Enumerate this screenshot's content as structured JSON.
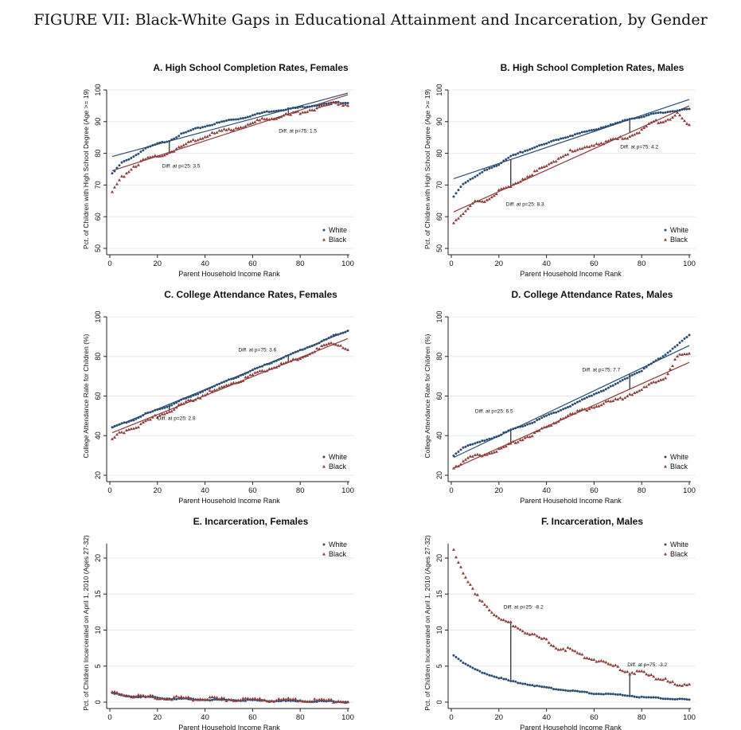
{
  "figure_title": "FIGURE VII: Black-White Gaps in Educational Attainment and Incarceration, by Gender",
  "colors": {
    "white": "#2b4c70",
    "black": "#8e3b3b",
    "grid": "#e4eaee"
  },
  "chart_data": [
    {
      "id": "A",
      "type": "scatter",
      "title": "A. High School Completion Rates, Females",
      "xlabel": "Parent Household Income Rank",
      "ylabel": "Pct. of Children with High School Degree (Age >= 19)",
      "xlim": [
        0,
        100
      ],
      "ylim": [
        50,
        100
      ],
      "xticks": [
        0,
        20,
        40,
        60,
        80,
        100
      ],
      "yticks": [
        50,
        60,
        70,
        80,
        90,
        100
      ],
      "legend": {
        "position": "bottom-right",
        "entries": [
          "White",
          "Black"
        ]
      },
      "x": [
        1,
        5,
        10,
        15,
        20,
        25,
        30,
        35,
        40,
        45,
        50,
        55,
        60,
        65,
        70,
        75,
        80,
        85,
        90,
        95,
        100
      ],
      "series": [
        {
          "name": "White",
          "values": [
            73.5,
            77,
            79,
            81.5,
            83,
            84,
            86,
            87.5,
            88.5,
            89.5,
            90.5,
            91,
            92,
            93,
            93.5,
            94,
            94.5,
            95,
            95.5,
            96,
            96
          ],
          "fit": [
            79,
            99
          ]
        },
        {
          "name": "Black",
          "values": [
            67.5,
            72.5,
            76,
            78,
            79,
            80.5,
            82,
            84,
            85.5,
            86.5,
            87.5,
            88.5,
            89.5,
            91,
            91.5,
            92,
            93,
            94,
            95,
            96,
            95.5
          ],
          "fit": [
            74.5,
            98.5
          ]
        }
      ],
      "annotations": [
        {
          "x": 25,
          "text": "Diff. at p=25: 3.5",
          "label_at": [
            22,
            75.5
          ]
        },
        {
          "x": 75,
          "text": "Diff. at p=75: 1.5",
          "label_at": [
            71,
            86.5
          ]
        }
      ]
    },
    {
      "id": "B",
      "type": "scatter",
      "title": "B. High School Completion Rates, Males",
      "xlabel": "Parent Household Income Rank",
      "ylabel": "Pct. of Children with High School Degree (Age >= 19)",
      "xlim": [
        0,
        100
      ],
      "ylim": [
        50,
        100
      ],
      "xticks": [
        0,
        20,
        40,
        60,
        80,
        100
      ],
      "yticks": [
        50,
        60,
        70,
        80,
        90,
        100
      ],
      "legend": {
        "position": "bottom-right",
        "entries": [
          "White",
          "Black"
        ]
      },
      "x": [
        1,
        5,
        10,
        15,
        20,
        25,
        30,
        35,
        40,
        45,
        50,
        55,
        60,
        65,
        70,
        75,
        80,
        85,
        90,
        95,
        100
      ],
      "series": [
        {
          "name": "White",
          "values": [
            66.5,
            70.5,
            72.5,
            75,
            76.5,
            79,
            80.5,
            82,
            83,
            84.5,
            85.5,
            86.5,
            87.5,
            88.5,
            89.5,
            91,
            91.5,
            92.5,
            93,
            93.5,
            94
          ],
          "fit": [
            72,
            97
          ]
        },
        {
          "name": "Black",
          "values": [
            58.5,
            61,
            64.5,
            65.5,
            68,
            69.5,
            72,
            74,
            76,
            78.5,
            80.5,
            81,
            83,
            83.5,
            84.5,
            85.5,
            87,
            90,
            90.5,
            92.5,
            88.5
          ],
          "fit": [
            61.5,
            95
          ]
        }
      ],
      "annotations": [
        {
          "x": 25,
          "text": "Diff. at p=25: 8.3",
          "label_at": [
            23,
            63.5
          ]
        },
        {
          "x": 75,
          "text": "Diff. at p=75: 4.2",
          "label_at": [
            71,
            81.5
          ]
        }
      ]
    },
    {
      "id": "C",
      "type": "scatter",
      "title": "C. College Attendance Rates, Females",
      "xlabel": "Parent Household Income Rank",
      "ylabel": "College Attendance Rate for Children (%)",
      "xlim": [
        0,
        100
      ],
      "ylim": [
        20,
        100
      ],
      "xticks": [
        0,
        20,
        40,
        60,
        80,
        100
      ],
      "yticks": [
        20,
        40,
        60,
        80,
        100
      ],
      "legend": {
        "position": "bottom-right",
        "entries": [
          "White",
          "Black"
        ]
      },
      "x": [
        1,
        5,
        10,
        15,
        20,
        25,
        30,
        35,
        40,
        45,
        50,
        55,
        60,
        65,
        70,
        75,
        80,
        85,
        90,
        95,
        100
      ],
      "series": [
        {
          "name": "White",
          "values": [
            44,
            46,
            48,
            51,
            53,
            55,
            58,
            60,
            63,
            65.5,
            68,
            70.5,
            73,
            75.5,
            78,
            80.5,
            83,
            85.5,
            88,
            91,
            93
          ],
          "fit": [
            44,
            93
          ]
        },
        {
          "name": "Black",
          "values": [
            38,
            42,
            44,
            47,
            50,
            52.5,
            55.5,
            58,
            61,
            63,
            66,
            68,
            70.5,
            73,
            75.5,
            77,
            79.5,
            82,
            85,
            87,
            84
          ],
          "fit": [
            41.5,
            89
          ]
        }
      ],
      "annotations": [
        {
          "x": 25,
          "text": "Diff. at p=25:  2.8",
          "label_at": [
            20,
            48
          ]
        },
        {
          "x": 75,
          "text": "Diff. at p=75:  3.6",
          "label_at": [
            54,
            82.5
          ]
        }
      ]
    },
    {
      "id": "D",
      "type": "scatter",
      "title": "D. College Attendance Rates, Males",
      "xlabel": "Parent Household Income Rank",
      "ylabel": "College Attendance Rate for Children (%)",
      "xlim": [
        0,
        100
      ],
      "ylim": [
        20,
        100
      ],
      "xticks": [
        0,
        20,
        40,
        60,
        80,
        100
      ],
      "yticks": [
        20,
        40,
        60,
        80,
        100
      ],
      "legend": {
        "position": "bottom-right",
        "entries": [
          "White",
          "Black"
        ]
      },
      "x": [
        1,
        5,
        10,
        15,
        20,
        25,
        30,
        35,
        40,
        45,
        50,
        55,
        60,
        65,
        70,
        75,
        80,
        85,
        90,
        95,
        100
      ],
      "series": [
        {
          "name": "White",
          "values": [
            30,
            34,
            36,
            38,
            40,
            43,
            45,
            47,
            50,
            52.5,
            55,
            58,
            61,
            63.5,
            66.5,
            70,
            73,
            77,
            81,
            86,
            90.5
          ],
          "fit": [
            29,
            85.5
          ]
        },
        {
          "name": "Black",
          "values": [
            24,
            27,
            30,
            31,
            33,
            35.5,
            38.5,
            41,
            44,
            48,
            50.5,
            52.5,
            55,
            56.5,
            58,
            61,
            63,
            67,
            70,
            80,
            81
          ],
          "fit": [
            23.5,
            77
          ]
        }
      ],
      "annotations": [
        {
          "x": 25,
          "text": "Diff. at p=25:  6.5",
          "label_at": [
            10,
            51.5
          ]
        },
        {
          "x": 75,
          "text": "Diff. at p=75:  7.7",
          "label_at": [
            55,
            72.5
          ]
        }
      ]
    },
    {
      "id": "E",
      "type": "scatter",
      "title": "E. Incarceration, Females",
      "xlabel": "Parent Household Income Rank",
      "ylabel": "Pct. of Children Incarcerated on April 1, 2010 (Ages 27-32)",
      "xlim": [
        0,
        100
      ],
      "ylim": [
        0,
        22
      ],
      "xticks": [
        0,
        20,
        40,
        60,
        80,
        100
      ],
      "yticks": [
        0,
        5,
        10,
        15,
        20
      ],
      "legend": {
        "position": "top-right",
        "entries": [
          "White",
          "Black"
        ]
      },
      "x": [
        1,
        5,
        10,
        15,
        20,
        25,
        30,
        35,
        40,
        45,
        50,
        55,
        60,
        65,
        70,
        75,
        80,
        85,
        90,
        95,
        100
      ],
      "series": [
        {
          "name": "White",
          "values": [
            1.2,
            1.0,
            0.8,
            0.7,
            0.6,
            0.5,
            0.45,
            0.4,
            0.35,
            0.3,
            0.3,
            0.25,
            0.25,
            0.2,
            0.2,
            0.15,
            0.15,
            0.1,
            0.1,
            0.1,
            0.05
          ]
        },
        {
          "name": "Black",
          "values": [
            1.4,
            1.1,
            0.9,
            0.75,
            0.7,
            0.6,
            0.55,
            0.5,
            0.5,
            0.45,
            0.4,
            0.4,
            0.35,
            0.35,
            0.3,
            0.3,
            0.25,
            0.25,
            0.2,
            0.2,
            0.15
          ]
        }
      ],
      "annotations": []
    },
    {
      "id": "F",
      "type": "scatter",
      "title": "F. Incarceration, Males",
      "xlabel": "Parent Household Income Rank",
      "ylabel": "Pct. of Children Incarcerated on April 1, 2010 (Ages 27-32)",
      "xlim": [
        0,
        100
      ],
      "ylim": [
        0,
        22
      ],
      "xticks": [
        0,
        20,
        40,
        60,
        80,
        100
      ],
      "yticks": [
        0,
        5,
        10,
        15,
        20
      ],
      "legend": {
        "position": "top-right",
        "entries": [
          "White",
          "Black"
        ]
      },
      "x": [
        1,
        5,
        10,
        15,
        20,
        25,
        30,
        35,
        40,
        45,
        50,
        55,
        60,
        65,
        70,
        75,
        80,
        85,
        90,
        95,
        100
      ],
      "series": [
        {
          "name": "White",
          "values": [
            6.5,
            5.5,
            4.5,
            3.9,
            3.4,
            2.9,
            2.6,
            2.3,
            2.0,
            1.8,
            1.6,
            1.4,
            1.2,
            1.1,
            1.0,
            0.9,
            0.7,
            0.6,
            0.5,
            0.4,
            0.3
          ]
        },
        {
          "name": "Black",
          "values": [
            21.2,
            17.7,
            15,
            13.4,
            11.5,
            11,
            10,
            9.2,
            8.5,
            7.5,
            7.3,
            6.5,
            6,
            5.4,
            4.8,
            4.1,
            4.2,
            3.4,
            3.3,
            2.2,
            2.3
          ]
        }
      ],
      "gaps": [
        {
          "x": 25,
          "from": 2.9,
          "to": 11
        },
        {
          "x": 75,
          "from": 0.9,
          "to": 4.1
        }
      ],
      "annotations": [
        {
          "x": 25,
          "text": "Diff. at p=25: -8.2",
          "label_at": [
            22,
            13
          ]
        },
        {
          "x": 75,
          "text": "Diff. at p=75: -3.2",
          "label_at": [
            74,
            5
          ]
        }
      ]
    }
  ]
}
